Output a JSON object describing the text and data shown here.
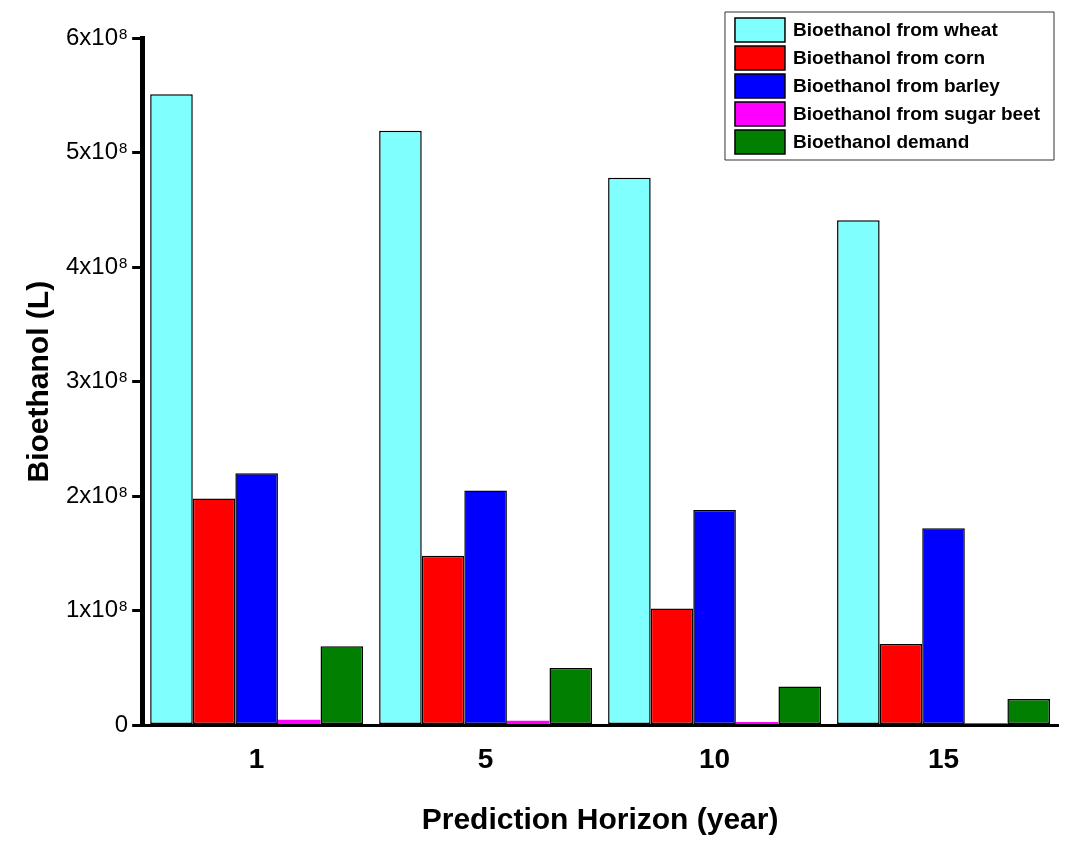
{
  "chart_data": {
    "type": "bar",
    "xlabel": "Prediction Horizon (year)",
    "ylabel": "Bioethanol (L)",
    "categories": [
      "1",
      "5",
      "10",
      "15"
    ],
    "series": [
      {
        "name": "Bioethanol from wheat",
        "color": "#80ffff",
        "values": [
          551000000,
          519000000,
          478000000,
          441000000
        ]
      },
      {
        "name": "Bioethanol from corn",
        "color": "#ff0000",
        "values": [
          198000000,
          148000000,
          102000000,
          71000000
        ]
      },
      {
        "name": "Bioethanol from barley",
        "color": "#0000ff",
        "values": [
          220000000,
          205000000,
          188000000,
          172000000
        ]
      },
      {
        "name": "Bioethanol from sugar beet",
        "color": "#ff00ff",
        "values": [
          5000000,
          4000000,
          3000000,
          2000000
        ]
      },
      {
        "name": "Bioethanol demand",
        "color": "#007f00",
        "values": [
          69000000,
          50000000,
          34000000,
          23000000
        ]
      }
    ],
    "ylim": [
      0,
      600000000
    ],
    "yticks": [
      {
        "value": 0,
        "label": "0"
      },
      {
        "value": 100000000,
        "label": "1x10⁸"
      },
      {
        "value": 200000000,
        "label": "2x10⁸"
      },
      {
        "value": 300000000,
        "label": "3x10⁸"
      },
      {
        "value": 400000000,
        "label": "4x10⁸"
      },
      {
        "value": 500000000,
        "label": "5x10⁸"
      },
      {
        "value": 600000000,
        "label": "6x10⁸"
      }
    ],
    "grid": false,
    "legend": "top right"
  }
}
